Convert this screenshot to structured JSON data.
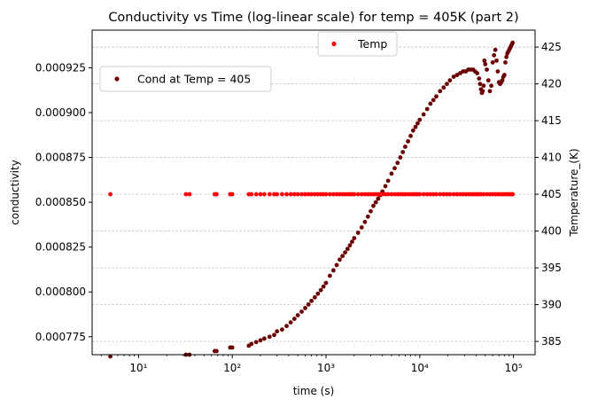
{
  "chart_data": {
    "type": "scatter",
    "title": "Conductivity vs Time (log-linear scale) for temp = 405K (part 2)",
    "xlabel": "time (s)",
    "ylabel": "conductivity",
    "y2label": "Temperature_(K)",
    "xscale": "log",
    "xlim": [
      3.2,
      170000
    ],
    "ylim": [
      0.000765,
      0.000946
    ],
    "y2lim": [
      383.2,
      427.3
    ],
    "x_ticks": [
      {
        "value": 10,
        "label": "10¹"
      },
      {
        "value": 100,
        "label": "10²"
      },
      {
        "value": 1000,
        "label": "10³"
      },
      {
        "value": 10000,
        "label": "10⁴"
      },
      {
        "value": 100000,
        "label": "10⁵"
      }
    ],
    "y_ticks": [
      {
        "value": 0.000775,
        "label": "0.000775"
      },
      {
        "value": 0.0008,
        "label": "0.000800"
      },
      {
        "value": 0.000825,
        "label": "0.000825"
      },
      {
        "value": 0.00085,
        "label": "0.000850"
      },
      {
        "value": 0.000875,
        "label": "0.000875"
      },
      {
        "value": 0.0009,
        "label": "0.000900"
      },
      {
        "value": 0.000925,
        "label": "0.000925"
      }
    ],
    "y2_ticks": [
      {
        "value": 385,
        "label": "385"
      },
      {
        "value": 390,
        "label": "390"
      },
      {
        "value": 395,
        "label": "395"
      },
      {
        "value": 400,
        "label": "400"
      },
      {
        "value": 405,
        "label": "405"
      },
      {
        "value": 410,
        "label": "410"
      },
      {
        "value": 415,
        "label": "415"
      },
      {
        "value": 420,
        "label": "420"
      },
      {
        "value": 425,
        "label": "425"
      }
    ],
    "grid": "dashed horizontal lines at the right-axis (Temperature) ticks",
    "legends": [
      {
        "label": "Cond at Temp = 405",
        "color": "#6b0000",
        "placement": "upper-left"
      },
      {
        "label": "Temp",
        "color": "#ff0000",
        "placement": "upper-center"
      }
    ],
    "series": [
      {
        "name": "Cond at Temp = 405",
        "axis": "left",
        "color": "#6b0000",
        "x": [
          5,
          32,
          35,
          65,
          68,
          95,
          100,
          150,
          160,
          180,
          200,
          220,
          250,
          280,
          300,
          340,
          380,
          420,
          460,
          500,
          550,
          600,
          650,
          700,
          760,
          820,
          880,
          940,
          1000,
          1100,
          1200,
          1300,
          1400,
          1500,
          1600,
          1700,
          1800,
          1900,
          2000,
          2200,
          2400,
          2600,
          2800,
          3000,
          3200,
          3400,
          3600,
          3800,
          4000,
          4300,
          4600,
          5000,
          5400,
          5800,
          6200,
          6600,
          7000,
          7500,
          8000,
          8500,
          9000,
          9500,
          10000,
          11000,
          12000,
          13000,
          14000,
          15000,
          16500,
          18000,
          19500,
          21000,
          23000,
          25000,
          27000,
          29000,
          31000,
          33000,
          35000,
          37000,
          39000,
          41000,
          43000,
          44000,
          45000,
          46000,
          47000,
          48000,
          49000,
          50000,
          52000,
          54000,
          56000,
          58000,
          60000,
          62000,
          64000,
          66000,
          68000,
          70000,
          72000,
          74000,
          76000,
          78000,
          80000,
          82000,
          84000,
          86000,
          88000,
          90000,
          92000,
          94000,
          96000,
          98000
        ],
        "y": [
          0.000764,
          0.000765,
          0.000765,
          0.000767,
          0.000767,
          0.000769,
          0.000769,
          0.00077,
          0.000771,
          0.000772,
          0.000773,
          0.000774,
          0.000775,
          0.000776,
          0.000778,
          0.000779,
          0.000781,
          0.000783,
          0.000785,
          0.000787,
          0.000789,
          0.000791,
          0.000793,
          0.000795,
          0.000797,
          0.000799,
          0.000801,
          0.000803,
          0.000805,
          0.000809,
          0.000812,
          0.000815,
          0.000818,
          0.00082,
          0.000822,
          0.000824,
          0.000826,
          0.000828,
          0.00083,
          0.000833,
          0.000836,
          0.000839,
          0.000842,
          0.000845,
          0.000848,
          0.00085,
          0.000852,
          0.000854,
          0.000856,
          0.000859,
          0.000862,
          0.000866,
          0.000869,
          0.000872,
          0.000875,
          0.000878,
          0.000881,
          0.000884,
          0.000887,
          0.00089,
          0.000892,
          0.000894,
          0.000896,
          0.000899,
          0.000902,
          0.000905,
          0.000907,
          0.000909,
          0.000912,
          0.000914,
          0.000916,
          0.000918,
          0.00092,
          0.000921,
          0.000922,
          0.000923,
          0.000923,
          0.000924,
          0.000924,
          0.000924,
          0.000923,
          0.000922,
          0.000919,
          0.000916,
          0.000913,
          0.000911,
          0.000912,
          0.000915,
          0.000929,
          0.000927,
          0.000924,
          0.000918,
          0.000912,
          0.000915,
          0.000928,
          0.000932,
          0.000935,
          0.000929,
          0.000923,
          0.000917,
          0.000916,
          0.000917,
          0.000918,
          0.00092,
          0.000921,
          0.000928,
          0.000931,
          0.000933,
          0.000934,
          0.000935,
          0.000936,
          0.000937,
          0.000938,
          0.000939
        ]
      },
      {
        "name": "Temp",
        "axis": "right",
        "color": "#ff0000",
        "x": [
          5,
          32,
          35,
          65,
          68,
          95,
          100,
          150,
          160,
          180,
          200,
          220,
          250,
          280,
          300,
          340,
          380,
          420,
          460,
          500,
          550,
          600,
          650,
          700,
          760,
          820,
          880,
          940,
          1000,
          1100,
          1200,
          1300,
          1400,
          1500,
          1600,
          1700,
          1800,
          1900,
          2000,
          2200,
          2400,
          2600,
          2800,
          3000,
          3200,
          3400,
          3600,
          3800,
          4000,
          4300,
          4600,
          5000,
          5400,
          5800,
          6200,
          6600,
          7000,
          7500,
          8000,
          8500,
          9000,
          9500,
          10000,
          11000,
          12000,
          13000,
          14000,
          15000,
          16500,
          18000,
          19500,
          21000,
          23000,
          25000,
          27000,
          29000,
          31000,
          33000,
          35000,
          37000,
          39000,
          41000,
          43000,
          45000,
          48000,
          52000,
          56000,
          60000,
          64000,
          68000,
          72000,
          76000,
          80000,
          84000,
          88000,
          92000,
          96000,
          98000
        ],
        "y": [
          405,
          405,
          405,
          405,
          405,
          405,
          405,
          405,
          405,
          405,
          405,
          405,
          405,
          405,
          405,
          405,
          405,
          405,
          405,
          405,
          405,
          405,
          405,
          405,
          405,
          405,
          405,
          405,
          405,
          405,
          405,
          405,
          405,
          405,
          405,
          405,
          405,
          405,
          405,
          405,
          405,
          405,
          405,
          405,
          405,
          405,
          405,
          405,
          405,
          405,
          405,
          405,
          405,
          405,
          405,
          405,
          405,
          405,
          405,
          405,
          405,
          405,
          405,
          405,
          405,
          405,
          405,
          405,
          405,
          405,
          405,
          405,
          405,
          405,
          405,
          405,
          405,
          405,
          405,
          405,
          405,
          405,
          405,
          405,
          405,
          405,
          405,
          405,
          405,
          405,
          405,
          405,
          405,
          405,
          405,
          405,
          405,
          405
        ]
      }
    ]
  }
}
